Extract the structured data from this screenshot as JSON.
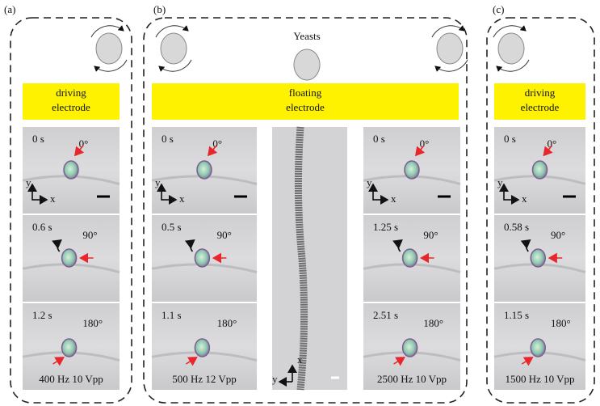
{
  "panels": [
    {
      "label": "(a)",
      "electrode": [
        "driving",
        "electrode"
      ],
      "columns": [
        {
          "frames": [
            {
              "time": "0 s",
              "angle": "0°"
            },
            {
              "time": "0.6 s",
              "angle": "90°"
            },
            {
              "time": "1.2 s",
              "angle": "180°"
            }
          ],
          "condition": "400 Hz 10 Vpp"
        }
      ]
    },
    {
      "label": "(b)",
      "cells": "Yeasts",
      "electrode": [
        "floating",
        "electrode"
      ],
      "columns": [
        {
          "frames": [
            {
              "time": "0 s",
              "angle": "0°"
            },
            {
              "time": "0.5 s",
              "angle": "90°"
            },
            {
              "time": "1.1 s",
              "angle": "180°"
            }
          ],
          "condition": "500 Hz 12 Vpp"
        },
        {
          "frames": [
            {
              "time": "0 s",
              "angle": "0°"
            },
            {
              "time": "1.25 s",
              "angle": "90°"
            },
            {
              "time": "2.51 s",
              "angle": "180°"
            }
          ],
          "condition": "2500 Hz 10 Vpp"
        }
      ],
      "inset_axes": [
        "x",
        "y"
      ]
    },
    {
      "label": "(c)",
      "electrode": [
        "driving",
        "electrode"
      ],
      "columns": [
        {
          "frames": [
            {
              "time": "0 s",
              "angle": "0°"
            },
            {
              "time": "0.58 s",
              "angle": "90°"
            },
            {
              "time": "1.15 s",
              "angle": "180°"
            }
          ],
          "condition": "1500 Hz 10 Vpp"
        }
      ]
    }
  ],
  "axes": [
    "y",
    "x"
  ]
}
